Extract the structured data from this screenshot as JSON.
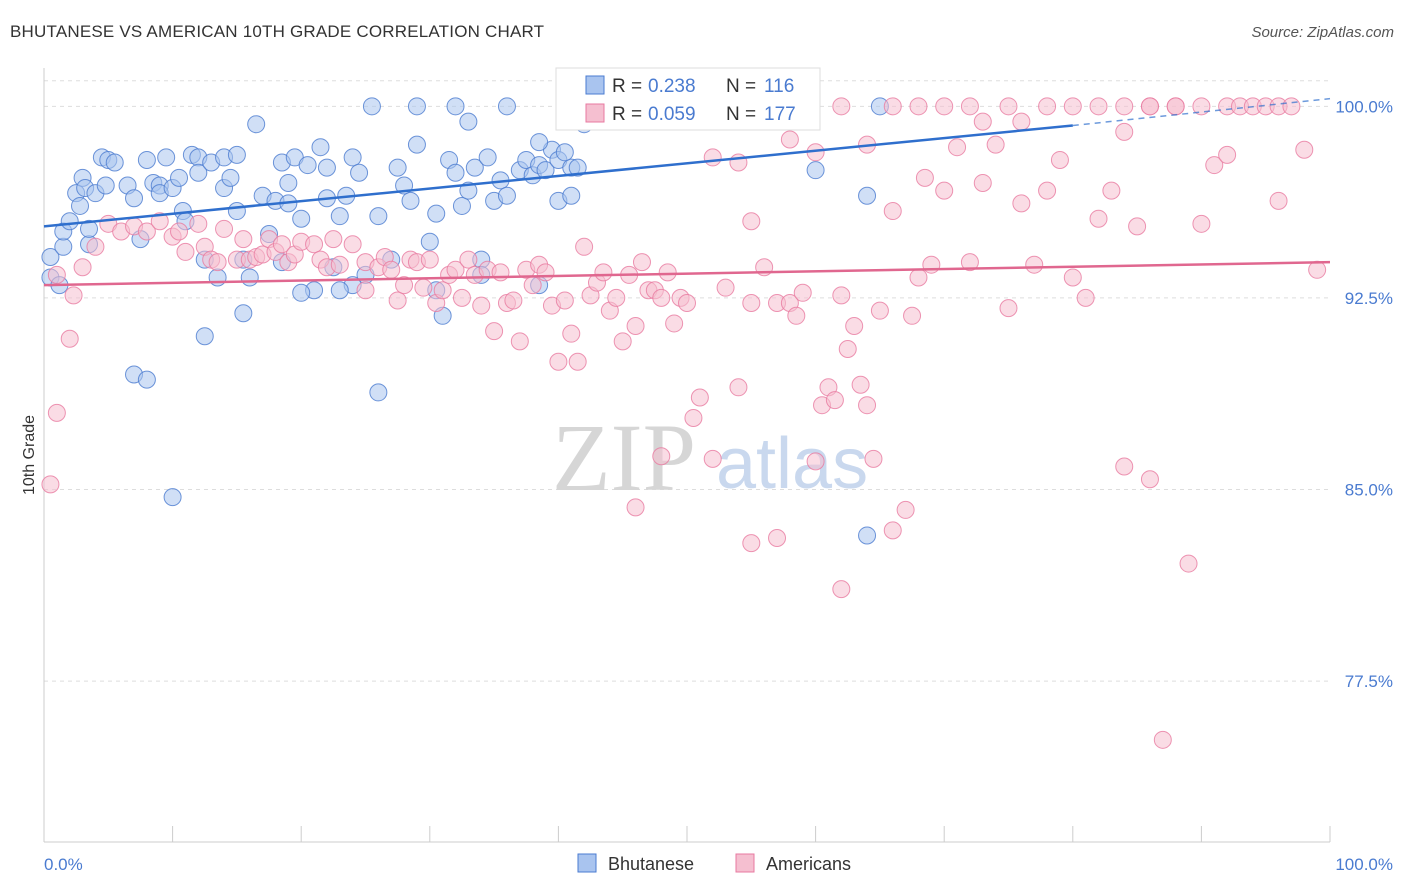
{
  "header": {
    "title": "BHUTANESE VS AMERICAN 10TH GRADE CORRELATION CHART",
    "source": "Source: ZipAtlas.com"
  },
  "watermark": {
    "zip": "ZIP",
    "atlas": "atlas"
  },
  "colors": {
    "blue": "#4a7bd0",
    "blue_fill": "#a9c4ef",
    "blue_line": "#2f6fcd",
    "pink": "#e87aa0",
    "pink_fill": "#f5bfd0",
    "pink_line": "#e0678f",
    "grid": "#dddddd",
    "axis": "#cccccc"
  },
  "legend": {
    "rows": [
      {
        "r_label": "R =",
        "r_value": "0.238",
        "n_label": "N =",
        "n_value": "116"
      },
      {
        "r_label": "R =",
        "r_value": "0.059",
        "n_label": "N =",
        "n_value": "177"
      }
    ]
  },
  "bottom_legend": [
    "Bhutanese",
    "Americans"
  ],
  "chart_data": {
    "type": "scatter",
    "title": "BHUTANESE VS AMERICAN 10TH GRADE CORRELATION CHART",
    "xlabel": "",
    "ylabel": "10th Grade",
    "xlim": [
      0,
      100
    ],
    "ylim": [
      71.2,
      101.5
    ],
    "x_tick_labels": [
      "0.0%",
      "100.0%"
    ],
    "y_ticks": [
      77.5,
      85.0,
      92.5,
      100.0
    ],
    "y_tick_labels": [
      "77.5%",
      "85.0%",
      "92.5%",
      "100.0%"
    ],
    "grid": true,
    "legend_position": "top-center",
    "series": [
      {
        "name": "Bhutanese",
        "r": 0.238,
        "n": 116,
        "trend": {
          "x0": 0,
          "y0": 95.3,
          "x1": 80,
          "y1": 99.25,
          "dash_to_x": 100,
          "dash_to_y": 100.3
        },
        "points": [
          [
            0.5,
            94.1
          ],
          [
            0.5,
            93.3
          ],
          [
            1.2,
            93.0
          ],
          [
            1.5,
            94.5
          ],
          [
            1.5,
            95.1
          ],
          [
            2,
            95.5
          ],
          [
            2.5,
            96.6
          ],
          [
            2.8,
            96.1
          ],
          [
            3,
            97.2
          ],
          [
            3.2,
            96.8
          ],
          [
            3.5,
            94.6
          ],
          [
            3.5,
            95.2
          ],
          [
            4,
            96.6
          ],
          [
            4.5,
            98.0
          ],
          [
            4.8,
            96.9
          ],
          [
            5,
            97.9
          ],
          [
            5.5,
            97.8
          ],
          [
            6.5,
            96.9
          ],
          [
            7,
            96.4
          ],
          [
            7.5,
            94.8
          ],
          [
            8,
            97.9
          ],
          [
            8.5,
            97.0
          ],
          [
            9,
            96.9
          ],
          [
            9,
            96.6
          ],
          [
            9.5,
            98.0
          ],
          [
            10,
            96.8
          ],
          [
            10.5,
            97.2
          ],
          [
            10.8,
            95.9
          ],
          [
            11,
            95.5
          ],
          [
            11.5,
            98.1
          ],
          [
            12,
            98.0
          ],
          [
            12,
            97.4
          ],
          [
            12.5,
            94.0
          ],
          [
            13,
            97.8
          ],
          [
            13.5,
            93.3
          ],
          [
            14,
            98.0
          ],
          [
            14,
            96.8
          ],
          [
            14.5,
            97.2
          ],
          [
            15,
            98.1
          ],
          [
            15,
            95.9
          ],
          [
            15.5,
            94.0
          ],
          [
            15.5,
            91.9
          ],
          [
            16,
            93.3
          ],
          [
            16.5,
            99.3
          ],
          [
            17,
            96.5
          ],
          [
            17.5,
            95.0
          ],
          [
            18,
            96.3
          ],
          [
            18.5,
            97.8
          ],
          [
            18.5,
            93.9
          ],
          [
            19,
            97.0
          ],
          [
            19.5,
            98.0
          ],
          [
            20,
            95.6
          ],
          [
            20.5,
            97.7
          ],
          [
            21,
            92.8
          ],
          [
            21.5,
            98.4
          ],
          [
            22,
            96.4
          ],
          [
            22.5,
            93.7
          ],
          [
            22,
            97.6
          ],
          [
            23,
            95.7
          ],
          [
            23.5,
            96.5
          ],
          [
            24,
            98.0
          ],
          [
            24.5,
            97.4
          ],
          [
            25,
            93.4
          ],
          [
            25.5,
            100.0
          ],
          [
            24,
            93.0
          ],
          [
            26,
            95.7
          ],
          [
            27,
            94.0
          ],
          [
            27.5,
            97.6
          ],
          [
            28,
            96.9
          ],
          [
            28.5,
            96.3
          ],
          [
            29,
            98.5
          ],
          [
            30,
            94.7
          ],
          [
            30.5,
            95.8
          ],
          [
            30.5,
            92.8
          ],
          [
            31,
            91.8
          ],
          [
            31.5,
            97.9
          ],
          [
            32,
            97.4
          ],
          [
            32.5,
            96.1
          ],
          [
            33,
            96.7
          ],
          [
            33.5,
            97.6
          ],
          [
            34,
            94.0
          ],
          [
            34.5,
            98.0
          ],
          [
            35,
            96.3
          ],
          [
            35.5,
            97.1
          ],
          [
            36,
            96.5
          ],
          [
            37,
            97.5
          ],
          [
            37.5,
            97.9
          ],
          [
            38,
            97.3
          ],
          [
            38.5,
            97.7
          ],
          [
            39,
            97.5
          ],
          [
            38.5,
            93.0
          ],
          [
            39.5,
            98.3
          ],
          [
            40,
            96.3
          ],
          [
            40,
            97.9
          ],
          [
            41,
            96.5
          ],
          [
            41,
            97.6
          ],
          [
            12.5,
            91.0
          ],
          [
            7,
            89.5
          ],
          [
            8,
            89.3
          ],
          [
            26,
            88.8
          ],
          [
            10,
            84.7
          ],
          [
            32,
            100.0
          ],
          [
            29,
            100.0
          ],
          [
            36,
            100.0
          ],
          [
            33,
            99.4
          ],
          [
            38.5,
            98.6
          ],
          [
            40.5,
            98.2
          ],
          [
            41.5,
            97.6
          ],
          [
            34,
            93.4
          ],
          [
            23,
            92.8
          ],
          [
            20,
            92.7
          ],
          [
            65,
            100.0
          ],
          [
            19,
            96.2
          ],
          [
            60,
            97.5
          ],
          [
            64,
            96.5
          ],
          [
            64,
            83.2
          ],
          [
            42,
            99.3
          ]
        ]
      },
      {
        "name": "Americans",
        "r": 0.059,
        "n": 177,
        "trend": {
          "x0": 0,
          "y0": 93.0,
          "x1": 100,
          "y1": 93.9
        },
        "points": [
          [
            0.5,
            85.2
          ],
          [
            1,
            93.4
          ],
          [
            1,
            88.0
          ],
          [
            2,
            90.9
          ],
          [
            2.3,
            92.6
          ],
          [
            3,
            93.7
          ],
          [
            4,
            94.5
          ],
          [
            5,
            95.4
          ],
          [
            6,
            95.1
          ],
          [
            7,
            95.3
          ],
          [
            8,
            95.1
          ],
          [
            9,
            95.5
          ],
          [
            10,
            94.9
          ],
          [
            10.5,
            95.1
          ],
          [
            11,
            94.3
          ],
          [
            12,
            95.4
          ],
          [
            12.5,
            94.5
          ],
          [
            13,
            94.0
          ],
          [
            13.5,
            93.9
          ],
          [
            14,
            95.2
          ],
          [
            15,
            94.0
          ],
          [
            15.5,
            94.8
          ],
          [
            16,
            94.0
          ],
          [
            16.5,
            94.1
          ],
          [
            17,
            94.2
          ],
          [
            17.5,
            94.8
          ],
          [
            18,
            94.3
          ],
          [
            18.5,
            94.6
          ],
          [
            19,
            93.9
          ],
          [
            19.5,
            94.2
          ],
          [
            20,
            94.7
          ],
          [
            21,
            94.6
          ],
          [
            21.5,
            94.0
          ],
          [
            22,
            93.7
          ],
          [
            22.5,
            94.8
          ],
          [
            23,
            93.8
          ],
          [
            24,
            94.6
          ],
          [
            25,
            92.8
          ],
          [
            25,
            93.9
          ],
          [
            26,
            93.7
          ],
          [
            26.5,
            94.1
          ],
          [
            27,
            93.6
          ],
          [
            27.5,
            92.4
          ],
          [
            28,
            93.0
          ],
          [
            28.5,
            94.0
          ],
          [
            29,
            93.9
          ],
          [
            29.5,
            92.9
          ],
          [
            30,
            94.0
          ],
          [
            30.5,
            92.3
          ],
          [
            31,
            92.8
          ],
          [
            31.5,
            93.4
          ],
          [
            32,
            93.6
          ],
          [
            32.5,
            92.5
          ],
          [
            33,
            94.0
          ],
          [
            33.5,
            93.4
          ],
          [
            34,
            92.2
          ],
          [
            34.5,
            93.6
          ],
          [
            35,
            91.2
          ],
          [
            35.5,
            93.5
          ],
          [
            36,
            92.3
          ],
          [
            36.5,
            92.4
          ],
          [
            37,
            90.8
          ],
          [
            37.5,
            93.6
          ],
          [
            38,
            93.0
          ],
          [
            38.5,
            93.8
          ],
          [
            39,
            93.5
          ],
          [
            39.5,
            92.2
          ],
          [
            40,
            90.0
          ],
          [
            40.5,
            92.4
          ],
          [
            41,
            91.1
          ],
          [
            41.5,
            90.0
          ],
          [
            42,
            94.5
          ],
          [
            42.5,
            92.6
          ],
          [
            43,
            93.1
          ],
          [
            43.5,
            93.5
          ],
          [
            44,
            92.0
          ],
          [
            44.5,
            92.5
          ],
          [
            45,
            90.8
          ],
          [
            45.5,
            93.4
          ],
          [
            46,
            91.4
          ],
          [
            46.5,
            93.9
          ],
          [
            47,
            92.8
          ],
          [
            47.5,
            92.8
          ],
          [
            48,
            92.5
          ],
          [
            48.5,
            93.5
          ],
          [
            49,
            91.5
          ],
          [
            49.5,
            92.5
          ],
          [
            50,
            92.3
          ],
          [
            50.5,
            87.8
          ],
          [
            51,
            88.6
          ],
          [
            52,
            86.2
          ],
          [
            53,
            92.9
          ],
          [
            54,
            89.0
          ],
          [
            55,
            92.3
          ],
          [
            56,
            93.7
          ],
          [
            57,
            92.3
          ],
          [
            58,
            92.3
          ],
          [
            58.5,
            91.8
          ],
          [
            59,
            92.7
          ],
          [
            60,
            86.1
          ],
          [
            60.5,
            88.3
          ],
          [
            61,
            89.0
          ],
          [
            61.5,
            88.5
          ],
          [
            62,
            92.6
          ],
          [
            62.5,
            90.5
          ],
          [
            63,
            91.4
          ],
          [
            63.5,
            89.1
          ],
          [
            64,
            88.3
          ],
          [
            64.5,
            86.2
          ],
          [
            65,
            92.0
          ],
          [
            66,
            95.9
          ],
          [
            67,
            84.2
          ],
          [
            67.5,
            91.8
          ],
          [
            68,
            93.3
          ],
          [
            68.5,
            97.2
          ],
          [
            69,
            93.8
          ],
          [
            70,
            96.7
          ],
          [
            71,
            98.4
          ],
          [
            72,
            93.9
          ],
          [
            73,
            97.0
          ],
          [
            74,
            98.5
          ],
          [
            75,
            92.1
          ],
          [
            76,
            96.2
          ],
          [
            77,
            93.8
          ],
          [
            78,
            96.7
          ],
          [
            79,
            97.9
          ],
          [
            80,
            93.3
          ],
          [
            81,
            92.5
          ],
          [
            82,
            95.6
          ],
          [
            83,
            96.7
          ],
          [
            84,
            85.9
          ],
          [
            85,
            95.3
          ],
          [
            86,
            85.4
          ],
          [
            87,
            75.2
          ],
          [
            88,
            100.0
          ],
          [
            89,
            82.1
          ],
          [
            90,
            95.4
          ],
          [
            91,
            97.7
          ],
          [
            92,
            100.0
          ],
          [
            93,
            100.0
          ],
          [
            94,
            100.0
          ],
          [
            95,
            100.0
          ],
          [
            96,
            100.0
          ],
          [
            97,
            100.0
          ],
          [
            98,
            98.3
          ],
          [
            99,
            93.6
          ],
          [
            46,
            84.3
          ],
          [
            48,
            86.3
          ],
          [
            55,
            82.9
          ],
          [
            57,
            83.1
          ],
          [
            62,
            81.1
          ],
          [
            66,
            83.4
          ],
          [
            70,
            100.0
          ],
          [
            73,
            99.4
          ],
          [
            75,
            100.0
          ],
          [
            78,
            100.0
          ],
          [
            82,
            100.0
          ],
          [
            84,
            99.0
          ],
          [
            86,
            100.0
          ],
          [
            88,
            100.0
          ],
          [
            55,
            95.5
          ],
          [
            68,
            100.0
          ],
          [
            72,
            100.0
          ],
          [
            76,
            99.4
          ],
          [
            80,
            100.0
          ],
          [
            84,
            100.0
          ],
          [
            58,
            98.7
          ],
          [
            62,
            100.0
          ],
          [
            64,
            98.5
          ],
          [
            66,
            100.0
          ],
          [
            52,
            98.0
          ],
          [
            54,
            97.8
          ],
          [
            50,
            100.0
          ],
          [
            56,
            100.0
          ],
          [
            60,
            98.2
          ],
          [
            86,
            100.0
          ],
          [
            90,
            100.0
          ],
          [
            92,
            98.1
          ],
          [
            96,
            96.3
          ]
        ]
      }
    ]
  }
}
